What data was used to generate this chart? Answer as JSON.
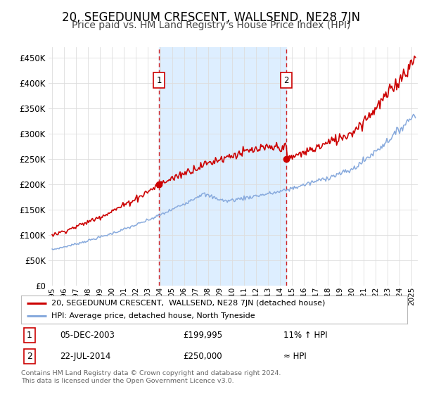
{
  "title": "20, SEGEDUNUM CRESCENT, WALLSEND, NE28 7JN",
  "subtitle": "Price paid vs. HM Land Registry's House Price Index (HPI)",
  "title_fontsize": 12,
  "subtitle_fontsize": 10,
  "ylim": [
    0,
    470000
  ],
  "yticks": [
    0,
    50000,
    100000,
    150000,
    200000,
    250000,
    300000,
    350000,
    400000,
    450000
  ],
  "xlim_start": 1994.7,
  "xlim_end": 2025.5,
  "background_color": "#ffffff",
  "fig_color": "#ffffff",
  "grid_color": "#dddddd",
  "shade_color": "#ddeeff",
  "hpi_color": "#88aadd",
  "price_color": "#cc0000",
  "sale1_x": 2003.92,
  "sale1_y": 199995,
  "sale2_x": 2014.55,
  "sale2_y": 250000,
  "sale1_label": "1",
  "sale2_label": "2",
  "legend_line1": "20, SEGEDUNUM CRESCENT,  WALLSEND, NE28 7JN (detached house)",
  "legend_line2": "HPI: Average price, detached house, North Tyneside",
  "table_row1_num": "1",
  "table_row1_date": "05-DEC-2003",
  "table_row1_price": "£199,995",
  "table_row1_hpi": "11% ↑ HPI",
  "table_row2_num": "2",
  "table_row2_date": "22-JUL-2014",
  "table_row2_price": "£250,000",
  "table_row2_hpi": "≈ HPI",
  "footer": "Contains HM Land Registry data © Crown copyright and database right 2024.\nThis data is licensed under the Open Government Licence v3.0."
}
